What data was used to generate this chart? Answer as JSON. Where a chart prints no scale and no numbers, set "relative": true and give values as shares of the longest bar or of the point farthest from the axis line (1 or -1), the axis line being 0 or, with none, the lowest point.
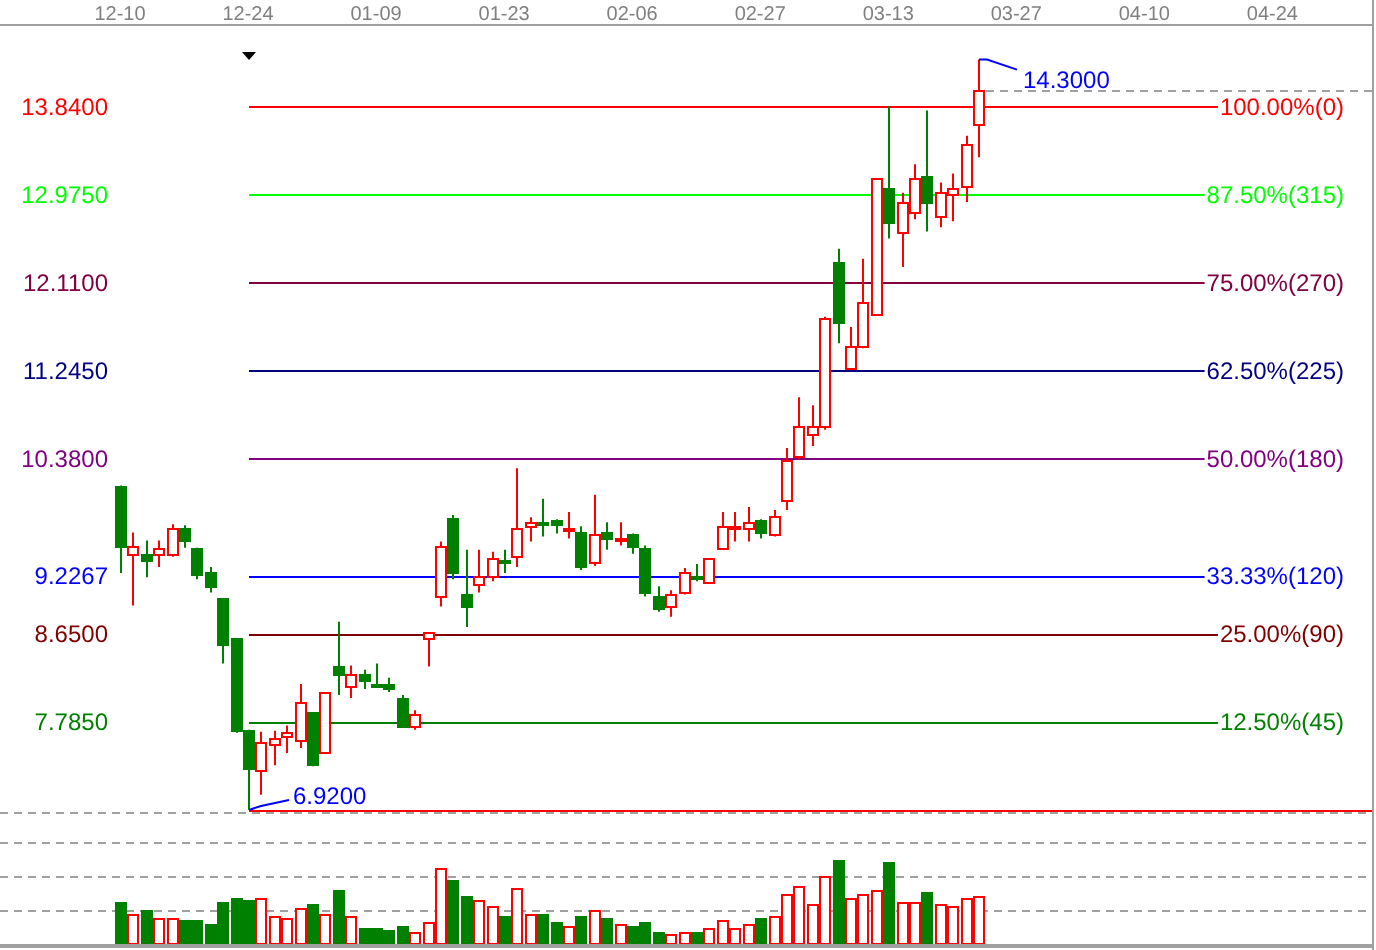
{
  "chart_data": [
    {
      "type": "candlestick",
      "categories": [
        "12-10",
        null,
        null,
        null,
        null,
        null,
        null,
        null,
        null,
        null,
        "12-24",
        null,
        null,
        null,
        null,
        null,
        null,
        null,
        null,
        null,
        "01-09",
        null,
        null,
        null,
        null,
        null,
        null,
        null,
        null,
        null,
        "01-23",
        null,
        null,
        null,
        null,
        null,
        null,
        null,
        null,
        null,
        "02-06",
        null,
        null,
        null,
        null,
        null,
        null,
        null,
        null,
        null,
        "02-27",
        null,
        null,
        null,
        null,
        null,
        null,
        null,
        null,
        null,
        "03-13",
        null,
        null,
        null,
        null,
        null,
        null,
        null,
        null,
        null,
        "03-27",
        null,
        null,
        null,
        null,
        null,
        null,
        null,
        null,
        null,
        "04-10",
        null,
        null,
        null,
        null,
        null,
        null,
        null,
        null,
        null,
        "04-24",
        null,
        null,
        null,
        null,
        null,
        null,
        null
      ],
      "ohlc": [
        [
          10.11,
          10.11,
          9.25,
          9.51
        ],
        [
          9.43,
          9.65,
          8.93,
          9.51
        ],
        [
          9.44,
          9.57,
          9.21,
          9.38
        ],
        [
          9.44,
          9.57,
          9.31,
          9.49
        ],
        [
          9.43,
          9.73,
          9.41,
          9.69
        ],
        [
          9.69,
          9.72,
          9.5,
          9.57
        ],
        [
          9.5,
          9.5,
          9.19,
          9.25
        ],
        [
          9.26,
          9.31,
          9.06,
          9.12
        ],
        [
          9.0,
          9.0,
          8.36,
          8.56
        ],
        [
          8.61,
          8.61,
          7.68,
          7.7
        ],
        [
          7.71,
          7.71,
          6.92,
          7.33
        ],
        [
          7.31,
          7.69,
          7.07,
          7.58
        ],
        [
          7.56,
          7.7,
          7.36,
          7.62
        ],
        [
          7.64,
          7.75,
          7.48,
          7.69
        ],
        [
          7.61,
          8.16,
          7.53,
          7.98
        ],
        [
          7.88,
          7.88,
          7.35,
          7.37
        ],
        [
          7.49,
          8.08,
          7.49,
          8.08
        ],
        [
          8.33,
          8.77,
          8.05,
          8.26
        ],
        [
          8.13,
          8.34,
          8.02,
          8.26
        ],
        [
          8.25,
          8.3,
          8.11,
          8.2
        ],
        [
          8.15,
          8.36,
          8.13,
          8.14
        ],
        [
          8.16,
          8.22,
          8.08,
          8.11
        ],
        [
          8.03,
          8.05,
          7.73,
          7.75
        ],
        [
          7.74,
          7.9,
          7.71,
          7.86
        ],
        [
          8.62,
          8.67,
          8.33,
          8.67
        ],
        [
          9.02,
          9.56,
          8.92,
          9.52
        ],
        [
          9.8,
          9.82,
          9.19,
          9.27
        ],
        [
          9.04,
          9.48,
          8.72,
          8.93
        ],
        [
          9.14,
          9.48,
          9.06,
          9.22
        ],
        [
          9.22,
          9.46,
          9.17,
          9.39
        ],
        [
          9.37,
          9.48,
          9.25,
          9.36
        ],
        [
          9.41,
          10.28,
          9.31,
          9.69
        ],
        [
          9.71,
          9.8,
          9.56,
          9.75
        ],
        [
          9.76,
          9.98,
          9.61,
          9.75
        ],
        [
          9.78,
          9.78,
          9.64,
          9.73
        ],
        [
          9.68,
          9.85,
          9.59,
          9.69
        ],
        [
          9.65,
          9.71,
          9.28,
          9.32
        ],
        [
          9.36,
          10.02,
          9.32,
          9.64
        ],
        [
          9.65,
          9.75,
          9.48,
          9.6
        ],
        [
          9.58,
          9.75,
          9.52,
          9.59
        ],
        [
          9.63,
          9.64,
          9.44,
          9.52
        ],
        [
          9.5,
          9.52,
          9.02,
          9.06
        ],
        [
          9.02,
          9.12,
          8.87,
          8.9
        ],
        [
          8.92,
          9.08,
          8.82,
          9.05
        ],
        [
          9.06,
          9.3,
          9.04,
          9.27
        ],
        [
          9.22,
          9.34,
          9.17,
          9.21
        ],
        [
          9.17,
          9.39,
          9.17,
          9.39
        ],
        [
          9.49,
          9.85,
          9.48,
          9.71
        ],
        [
          9.71,
          9.85,
          9.56,
          9.72
        ],
        [
          9.69,
          9.9,
          9.56,
          9.76
        ],
        [
          9.78,
          9.78,
          9.59,
          9.66
        ],
        [
          9.64,
          9.87,
          9.61,
          9.82
        ],
        [
          9.97,
          10.48,
          9.87,
          10.36
        ],
        [
          10.41,
          10.98,
          10.37,
          10.69
        ],
        [
          10.61,
          10.9,
          10.5,
          10.69
        ],
        [
          10.7,
          11.77,
          10.66,
          11.75
        ],
        [
          12.31,
          12.44,
          11.51,
          11.72
        ],
        [
          11.26,
          11.67,
          11.25,
          11.49
        ],
        [
          11.48,
          12.34,
          11.46,
          11.92
        ],
        [
          11.79,
          13.13,
          11.79,
          13.13
        ],
        [
          13.03,
          13.84,
          12.54,
          12.71
        ],
        [
          12.61,
          12.99,
          12.26,
          12.9
        ],
        [
          12.81,
          13.27,
          12.73,
          13.13
        ],
        [
          13.15,
          13.8,
          12.61,
          12.9
        ],
        [
          12.77,
          13.09,
          12.65,
          12.99
        ],
        [
          12.98,
          13.18,
          12.71,
          13.03
        ],
        [
          13.05,
          13.55,
          12.9,
          13.47
        ],
        [
          13.66,
          14.3,
          13.34,
          14.0
        ],
        null,
        null,
        null,
        null,
        null,
        null,
        null,
        null,
        null,
        null,
        null,
        null,
        null,
        null,
        null,
        null,
        null,
        null,
        null,
        null,
        null,
        null,
        null,
        null,
        null,
        null,
        null,
        null,
        null,
        null
      ],
      "colors": [
        "#008000",
        "#ff0000",
        "#008000",
        "#ff0000",
        "#ff0000",
        "#008000",
        "#008000",
        "#008000",
        "#008000",
        "#008000",
        "#008000",
        "#ff0000",
        "#ff0000",
        "#ff0000",
        "#ff0000",
        "#008000",
        "#ff0000",
        "#008000",
        "#ff0000",
        "#008000",
        "#008000",
        "#008000",
        "#008000",
        "#ff0000",
        "#ff0000",
        "#ff0000",
        "#008000",
        "#008000",
        "#ff0000",
        "#ff0000",
        "#008000",
        "#ff0000",
        "#ff0000",
        "#008000",
        "#008000",
        "#ff0000",
        "#008000",
        "#ff0000",
        "#008000",
        "#ff0000",
        "#008000",
        "#008000",
        "#008000",
        "#ff0000",
        "#ff0000",
        "#008000",
        "#ff0000",
        "#ff0000",
        "#ff0000",
        "#ff0000",
        "#008000",
        "#ff0000",
        "#ff0000",
        "#ff0000",
        "#ff0000",
        "#ff0000",
        "#008000",
        "#ff0000",
        "#ff0000",
        "#ff0000",
        "#008000",
        "#ff0000",
        "#ff0000",
        "#008000",
        "#ff0000",
        "#ff0000",
        "#ff0000",
        "#ff0000",
        null,
        null,
        null,
        null,
        null,
        null,
        null,
        null,
        null,
        null,
        null,
        null,
        null,
        null,
        null,
        null,
        null,
        null,
        null,
        null,
        null,
        null,
        null,
        null,
        null,
        null,
        null,
        null,
        null,
        null
      ],
      "ylim": [
        6.9,
        14.65
      ],
      "yticks": [
        {
          "value": 13.84,
          "label": "13.8400"
        },
        {
          "value": 12.975,
          "label": "12.9750"
        },
        {
          "value": 12.11,
          "label": "12.1100"
        },
        {
          "value": 11.245,
          "label": "11.2450"
        },
        {
          "value": 10.38,
          "label": "10.3800"
        },
        {
          "value": 9.2267,
          "label": "9.2267"
        },
        {
          "value": 8.65,
          "label": "8.6500"
        },
        {
          "value": 7.785,
          "label": "7.7850"
        }
      ],
      "ref_lines": [
        {
          "axis": "y",
          "value": 13.84,
          "color": "#ff0000"
        },
        {
          "axis": "y",
          "value": 12.975,
          "color": "#00ff00"
        },
        {
          "axis": "y",
          "value": 12.11,
          "color": "#800040"
        },
        {
          "axis": "y",
          "value": 11.245,
          "color": "#000080"
        },
        {
          "axis": "y",
          "value": 10.38,
          "color": "#800080"
        },
        {
          "axis": "y",
          "value": 9.2267,
          "color": "#0000ff"
        },
        {
          "axis": "y",
          "value": 8.65,
          "color": "#800000"
        },
        {
          "axis": "y",
          "value": 7.785,
          "color": "#008000"
        },
        {
          "axis": "y",
          "value": 6.92,
          "color": "#ff0000"
        },
        {
          "axis": "y",
          "value": 14.0,
          "color": "#a0a0a0",
          "line_style": "dashed"
        }
      ],
      "annotations": [
        "100.00%(0)",
        "87.50%(315)",
        "75.00%(270)",
        "62.50%(225)",
        "50.00%(180)",
        "33.33%(120)",
        "25.00%(90)",
        "12.50%(45)",
        "14.3000",
        {
          "text": "6.9200",
          "y": 6.92
        }
      ]
    },
    {
      "type": "bar",
      "relative": true,
      "categories": [
        null,
        null,
        null,
        null,
        null,
        null,
        null,
        null,
        null,
        null,
        null,
        null,
        null,
        null,
        null,
        null,
        null,
        null,
        null,
        null,
        null,
        null,
        null,
        null,
        null,
        null,
        null,
        null,
        null,
        null,
        null,
        null,
        null,
        null,
        null,
        null,
        null,
        null,
        null,
        null,
        null,
        null,
        null,
        null,
        null,
        null,
        null,
        null,
        null,
        null,
        null,
        null,
        null,
        null,
        null,
        null,
        null,
        null,
        null,
        null,
        null,
        null,
        null,
        null,
        null,
        null,
        null,
        null,
        null,
        null,
        null,
        null,
        null,
        null,
        null,
        null,
        null,
        null,
        null,
        null,
        null,
        null,
        null,
        null,
        null,
        null,
        null,
        null,
        null,
        null,
        null,
        null,
        null,
        null,
        null,
        null,
        null,
        null
      ],
      "values": [
        0.5,
        0.35,
        0.41,
        0.31,
        0.31,
        0.29,
        0.29,
        0.24,
        0.5,
        0.55,
        0.53,
        0.54,
        0.33,
        0.31,
        0.43,
        0.48,
        0.35,
        0.65,
        0.33,
        0.2,
        0.2,
        0.17,
        0.22,
        0.14,
        0.26,
        0.9,
        0.76,
        0.57,
        0.52,
        0.45,
        0.34,
        0.66,
        0.35,
        0.36,
        0.27,
        0.21,
        0.34,
        0.4,
        0.31,
        0.24,
        0.22,
        0.27,
        0.15,
        0.12,
        0.14,
        0.15,
        0.19,
        0.28,
        0.19,
        0.24,
        0.31,
        0.33,
        0.59,
        0.69,
        0.47,
        0.8,
        1,
        0.54,
        0.59,
        0.64,
        0.98,
        0.5,
        0.5,
        0.62,
        0.47,
        0.45,
        0.54,
        0.57,
        null,
        null,
        null,
        null,
        null,
        null,
        null,
        null,
        null,
        null,
        null,
        null,
        null,
        null,
        null,
        null,
        null,
        null,
        null,
        null,
        null,
        null,
        null,
        null,
        null,
        null,
        null,
        null,
        null,
        null
      ],
      "colors": [
        "#008000",
        "#ff0000",
        "#008000",
        "#ff0000",
        "#ff0000",
        "#008000",
        "#008000",
        "#008000",
        "#008000",
        "#008000",
        "#008000",
        "#ff0000",
        "#ff0000",
        "#ff0000",
        "#ff0000",
        "#008000",
        "#ff0000",
        "#008000",
        "#ff0000",
        "#008000",
        "#008000",
        "#008000",
        "#008000",
        "#ff0000",
        "#ff0000",
        "#ff0000",
        "#008000",
        "#008000",
        "#ff0000",
        "#ff0000",
        "#008000",
        "#ff0000",
        "#ff0000",
        "#008000",
        "#008000",
        "#ff0000",
        "#008000",
        "#ff0000",
        "#008000",
        "#ff0000",
        "#008000",
        "#008000",
        "#008000",
        "#ff0000",
        "#ff0000",
        "#008000",
        "#ff0000",
        "#ff0000",
        "#ff0000",
        "#ff0000",
        "#008000",
        "#ff0000",
        "#ff0000",
        "#ff0000",
        "#ff0000",
        "#ff0000",
        "#008000",
        "#ff0000",
        "#ff0000",
        "#ff0000",
        "#008000",
        "#ff0000",
        "#ff0000",
        "#008000",
        "#ff0000",
        "#ff0000",
        "#ff0000",
        "#ff0000",
        null,
        null,
        null,
        null,
        null,
        null,
        null,
        null,
        null,
        null,
        null,
        null,
        null,
        null,
        null,
        null,
        null,
        null,
        null,
        null,
        null,
        null,
        null,
        null,
        null,
        null,
        null,
        null,
        null,
        null
      ],
      "ref_lines": [
        {
          "axis": "y",
          "value": 0.41,
          "color": "#a0a0a0",
          "line_style": "dashed"
        },
        {
          "axis": "y",
          "value": 0.82,
          "color": "#a0a0a0",
          "line_style": "dashed"
        },
        {
          "axis": "y",
          "value": 1.22,
          "color": "#a0a0a0",
          "line_style": "dashed"
        }
      ]
    }
  ]
}
